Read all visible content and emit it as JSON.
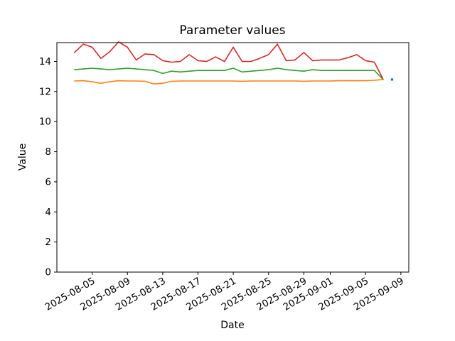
{
  "figure": {
    "background": "#ffffff",
    "axis_color": "#000000"
  },
  "chart_data": {
    "type": "line",
    "title": "Parameter values",
    "xlabel": "Date",
    "ylabel": "Value",
    "grid": false,
    "legend": "none",
    "ylim": [
      0,
      15.25
    ],
    "y_ticks": [
      0,
      2,
      4,
      6,
      8,
      10,
      12,
      14
    ],
    "x_epoch": "2025-08-01",
    "xlim_days": [
      0,
      39.9
    ],
    "x_tick_labels": [
      "2025-08-05",
      "2025-08-09",
      "2025-08-13",
      "2025-08-17",
      "2025-08-21",
      "2025-08-25",
      "2025-08-29",
      "2025-09-01",
      "2025-09-05",
      "2025-09-09"
    ],
    "x": [
      "2025-08-03",
      "2025-08-04",
      "2025-08-05",
      "2025-08-06",
      "2025-08-07",
      "2025-08-08",
      "2025-08-09",
      "2025-08-10",
      "2025-08-11",
      "2025-08-12",
      "2025-08-13",
      "2025-08-14",
      "2025-08-15",
      "2025-08-16",
      "2025-08-17",
      "2025-08-18",
      "2025-08-19",
      "2025-08-20",
      "2025-08-21",
      "2025-08-22",
      "2025-08-23",
      "2025-08-24",
      "2025-08-25",
      "2025-08-26",
      "2025-08-27",
      "2025-08-28",
      "2025-08-29",
      "2025-08-30",
      "2025-08-31",
      "2025-09-01",
      "2025-09-02",
      "2025-09-03",
      "2025-09-04",
      "2025-09-05",
      "2025-09-06",
      "2025-09-07"
    ],
    "series": [
      {
        "name": "series-1",
        "color": "#d62728",
        "values": [
          14.6,
          15.15,
          14.95,
          14.2,
          14.65,
          15.3,
          14.95,
          14.1,
          14.5,
          14.45,
          14.05,
          13.95,
          14.0,
          14.45,
          14.05,
          14.0,
          14.3,
          14.0,
          14.95,
          14.0,
          14.0,
          14.2,
          14.45,
          15.15,
          14.05,
          14.1,
          14.6,
          14.05,
          14.1,
          14.1,
          14.1,
          14.25,
          14.45,
          14.05,
          13.95,
          12.8
        ]
      },
      {
        "name": "series-2",
        "color": "#2ca02c",
        "values": [
          13.45,
          13.5,
          13.55,
          13.5,
          13.45,
          13.5,
          13.55,
          13.5,
          13.45,
          13.4,
          13.2,
          13.35,
          13.3,
          13.35,
          13.4,
          13.4,
          13.4,
          13.4,
          13.55,
          13.3,
          13.35,
          13.4,
          13.45,
          13.55,
          13.45,
          13.4,
          13.35,
          13.45,
          13.4,
          13.4,
          13.4,
          13.4,
          13.4,
          13.4,
          13.4,
          12.8
        ]
      },
      {
        "name": "series-3",
        "color": "#ff7f0e",
        "values": [
          12.7,
          12.72,
          12.65,
          12.55,
          12.65,
          12.72,
          12.7,
          12.7,
          12.68,
          12.5,
          12.55,
          12.68,
          12.7,
          12.7,
          12.7,
          12.7,
          12.7,
          12.7,
          12.7,
          12.68,
          12.7,
          12.7,
          12.7,
          12.7,
          12.7,
          12.7,
          12.68,
          12.7,
          12.7,
          12.7,
          12.72,
          12.72,
          12.72,
          12.72,
          12.75,
          12.8
        ]
      }
    ],
    "scatter": [
      {
        "name": "scatter-point",
        "color": "#1f77b4",
        "date": "2025-09-08",
        "value": 12.8
      }
    ]
  }
}
